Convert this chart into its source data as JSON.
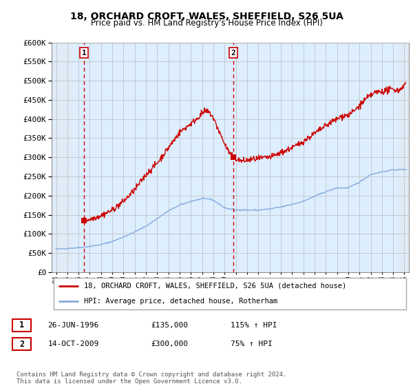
{
  "title": "18, ORCHARD CROFT, WALES, SHEFFIELD, S26 5UA",
  "subtitle": "Price paid vs. HM Land Registry's House Price Index (HPI)",
  "legend_line1": "18, ORCHARD CROFT, WALES, SHEFFIELD, S26 5UA (detached house)",
  "legend_line2": "HPI: Average price, detached house, Rotherham",
  "footnote": "Contains HM Land Registry data © Crown copyright and database right 2024.\nThis data is licensed under the Open Government Licence v3.0.",
  "sale1_date": "26-JUN-1996",
  "sale1_price": 135000,
  "sale1_hpi": "115% ↑ HPI",
  "sale2_date": "14-OCT-2009",
  "sale2_price": 300000,
  "sale2_hpi": "75% ↑ HPI",
  "sale1_x": 1996.49,
  "sale2_x": 2009.79,
  "ylim": [
    0,
    600000
  ],
  "yticks": [
    0,
    50000,
    100000,
    150000,
    200000,
    250000,
    300000,
    350000,
    400000,
    450000,
    500000,
    550000,
    600000
  ],
  "xlim_left": 1993.6,
  "xlim_right": 2025.4,
  "property_color": "#cc0000",
  "hpi_color": "#88aadd",
  "vline_color": "#cc0000",
  "grid_color": "#bbbbbb",
  "bg_color": "#ddeeff",
  "hatch_color": "#ffffff"
}
